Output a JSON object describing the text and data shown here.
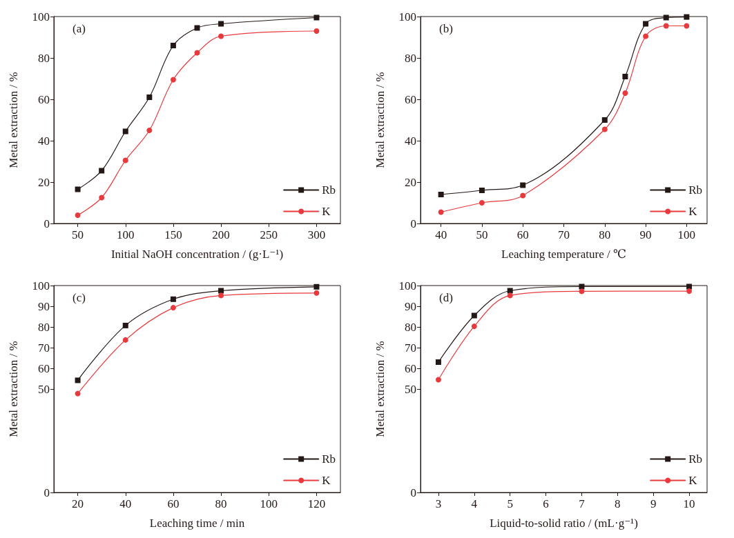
{
  "chart_data": [
    {
      "type": "line",
      "title": "(a)",
      "xlabel": "Initial NaOH concentration / (g·L⁻¹)",
      "ylabel": "Metal extraction / %",
      "x": [
        50,
        75,
        100,
        125,
        150,
        175,
        200,
        300
      ],
      "series": [
        {
          "name": "Rb",
          "color": "#231815",
          "marker": "square",
          "values": [
            16.5,
            25.5,
            44.5,
            61,
            86,
            94.5,
            96.5,
            99.5
          ]
        },
        {
          "name": "K",
          "color": "#e8393d",
          "marker": "circle",
          "values": [
            4,
            12.5,
            30.5,
            45,
            69.5,
            82.5,
            90.5,
            93
          ]
        }
      ],
      "xlim": [
        25,
        325
      ],
      "xticks": [
        50,
        100,
        150,
        200,
        250,
        300
      ],
      "ylim": [
        0,
        100
      ],
      "yticks": [
        0,
        20,
        40,
        60,
        80,
        100
      ],
      "grid": false,
      "legend": "bottom right"
    },
    {
      "type": "line",
      "title": "(b)",
      "xlabel": "Leaching temperature / ℃",
      "ylabel": "Metal extraction / %",
      "x": [
        40,
        50,
        60,
        80,
        85,
        90,
        95,
        100
      ],
      "series": [
        {
          "name": "Rb",
          "color": "#231815",
          "marker": "square",
          "values": [
            14,
            16,
            18.5,
            50,
            71,
            96.5,
            99.5,
            99.8
          ]
        },
        {
          "name": "K",
          "color": "#e8393d",
          "marker": "circle",
          "values": [
            5.5,
            10,
            13.5,
            45.5,
            63,
            90.5,
            95.5,
            95.5
          ]
        }
      ],
      "xlim": [
        35,
        105
      ],
      "xticks": [
        40,
        50,
        60,
        70,
        80,
        90,
        100
      ],
      "ylim": [
        0,
        100
      ],
      "yticks": [
        0,
        20,
        40,
        60,
        80,
        100
      ],
      "grid": false,
      "legend": "bottom right"
    },
    {
      "type": "line",
      "title": "(c)",
      "xlabel": "Leaching time / min",
      "ylabel": "Metal extraction / %",
      "x": [
        20,
        40,
        60,
        80,
        120
      ],
      "series": [
        {
          "name": "Rb",
          "color": "#231815",
          "marker": "square",
          "values": [
            54.2,
            80.7,
            93.4,
            97.5,
            99.4
          ]
        },
        {
          "name": "K",
          "color": "#e8393d",
          "marker": "circle",
          "values": [
            47.8,
            73.7,
            89.3,
            95.2,
            96.4
          ]
        }
      ],
      "xlim": [
        10,
        130
      ],
      "xticks": [
        20,
        40,
        60,
        80,
        100,
        120
      ],
      "ylim": [
        0,
        100
      ],
      "yticks": [
        0,
        50,
        60,
        70,
        80,
        90,
        100
      ],
      "grid": false,
      "legend": "bottom right"
    },
    {
      "type": "line",
      "title": "(d)",
      "xlabel": "Liquid-to-solid ratio / (mL·g⁻¹)",
      "ylabel": "Metal extraction / %",
      "x": [
        3,
        4,
        5,
        7,
        10
      ],
      "series": [
        {
          "name": "Rb",
          "color": "#231815",
          "marker": "square",
          "values": [
            63,
            85.5,
            97.5,
            99.5,
            99.5
          ]
        },
        {
          "name": "K",
          "color": "#e8393d",
          "marker": "circle",
          "values": [
            54.5,
            80.3,
            95.2,
            97.2,
            97.3
          ]
        }
      ],
      "xlim": [
        2.5,
        10.5
      ],
      "xticks": [
        3,
        4,
        5,
        6,
        7,
        8,
        9,
        10
      ],
      "ylim": [
        0,
        100
      ],
      "yticks": [
        0,
        50,
        60,
        70,
        80,
        90,
        100
      ],
      "grid": false,
      "legend": "bottom right"
    }
  ]
}
